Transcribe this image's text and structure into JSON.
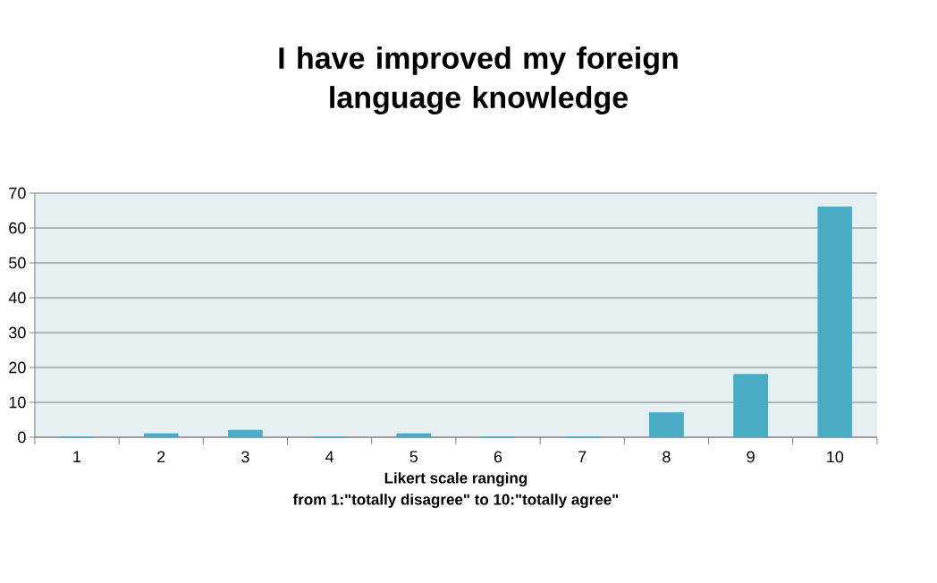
{
  "chart_data": {
    "type": "bar",
    "title": "I have improved my foreign language knowledge",
    "xlabel": "Likert scale ranging from 1:\"totally disagree\" to 10:\"totally agree\"",
    "categories": [
      "1",
      "2",
      "3",
      "4",
      "5",
      "6",
      "7",
      "8",
      "9",
      "10"
    ],
    "values": [
      0,
      1,
      2,
      0,
      1,
      0,
      0,
      7,
      18,
      66
    ],
    "color": "#4bacc6",
    "ylim": [
      0,
      70
    ],
    "yticks": [
      0,
      10,
      20,
      30,
      40,
      50,
      60,
      70
    ],
    "grid": "y"
  }
}
